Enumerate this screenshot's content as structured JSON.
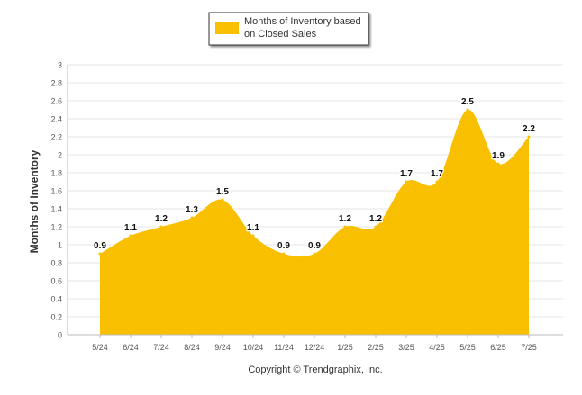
{
  "chart_data": {
    "type": "area",
    "categories": [
      "5/24",
      "6/24",
      "7/24",
      "8/24",
      "9/24",
      "10/24",
      "11/24",
      "12/24",
      "1/25",
      "2/25",
      "3/25",
      "4/25",
      "5/25",
      "6/25",
      "7/25"
    ],
    "series": [
      {
        "name": "Months of Inventory based on Closed Sales",
        "values": [
          0.9,
          1.1,
          1.2,
          1.3,
          1.5,
          1.1,
          0.9,
          0.9,
          1.2,
          1.2,
          1.7,
          1.7,
          2.5,
          1.9,
          2.2
        ],
        "color": "#F8C000"
      }
    ],
    "legend_lines": [
      "Months of Inventory based",
      "on Closed Sales"
    ],
    "ylabel": "Months of Inventory",
    "xlabel": "",
    "ylim": [
      0,
      3
    ],
    "yticks": [
      "0",
      "0.2",
      "0.4",
      "0.6",
      "0.8",
      "1",
      "1.2",
      "1.4",
      "1.6",
      "1.8",
      "2",
      "2.2",
      "2.4",
      "2.6",
      "2.8",
      "3"
    ],
    "grid": true,
    "legend_position": "top-center",
    "footer": "Copyright © Trendgraphix, Inc."
  }
}
